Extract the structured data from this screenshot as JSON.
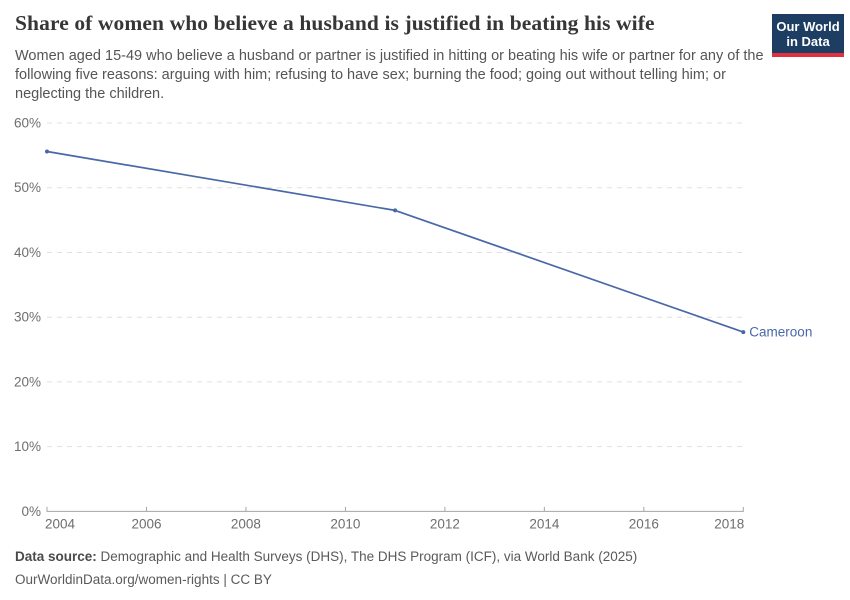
{
  "header": {
    "title": "Share of women who believe a husband is justified in beating his wife",
    "subtitle": "Women aged 15-49 who believe a husband or partner is justified in hitting or beating his wife or partner for any of the following five reasons: arguing with him; refusing to have sex; burning the food; going out without telling him; or neglecting the children.",
    "logo": {
      "line1": "Our World",
      "line2": "in Data",
      "bg_color": "#1d3d63",
      "accent_color": "#e0313f"
    }
  },
  "chart_data": {
    "type": "line",
    "title": "Share of women who believe a husband is justified in beating his wife",
    "xlabel": "",
    "ylabel": "",
    "xlim": [
      2004,
      2018
    ],
    "ylim": [
      0,
      60
    ],
    "x_ticks": [
      2004,
      2006,
      2008,
      2010,
      2012,
      2014,
      2016,
      2018
    ],
    "y_ticks": [
      0,
      10,
      20,
      30,
      40,
      50,
      60
    ],
    "y_tick_suffix": "%",
    "grid": "horizontal dashed",
    "legend_position": "end-of-line label",
    "series": [
      {
        "name": "Cameroon",
        "color": "#4868a8",
        "x": [
          2004,
          2011,
          2018
        ],
        "values": [
          55.6,
          46.5,
          27.7
        ]
      }
    ]
  },
  "footer": {
    "source_label": "Data source:",
    "source_text": " Demographic and Health Surveys (DHS), The DHS Program (ICF), via World Bank (2025)",
    "link_text": "OurWorldinData.org/women-rights | CC BY"
  },
  "colors": {
    "gridline": "#e1e1e1",
    "axis": "#a5a5a5",
    "tick_label": "#6e6e6e",
    "title": "#363636",
    "subtitle": "#555555",
    "footer": "#5a5a5a"
  }
}
